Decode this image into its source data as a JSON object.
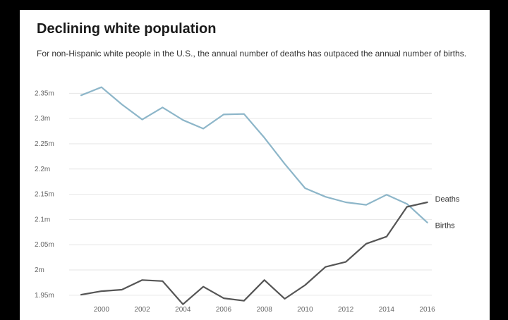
{
  "header": {
    "title": "Declining white population",
    "subtitle": "For non-Hispanic white people in the U.S., the annual number of deaths has outpaced the annual number of births."
  },
  "chart_data": {
    "type": "line",
    "title": "Declining white population",
    "subtitle": "For non-Hispanic white people in the U.S., the annual number of deaths has outpaced the annual number of births.",
    "xlabel": "",
    "ylabel": "",
    "x": [
      1999,
      2000,
      2001,
      2002,
      2003,
      2004,
      2005,
      2006,
      2007,
      2008,
      2009,
      2010,
      2011,
      2012,
      2013,
      2014,
      2015,
      2016
    ],
    "x_ticks": [
      "2000",
      "2002",
      "2004",
      "2006",
      "2008",
      "2010",
      "2012",
      "2014",
      "2016"
    ],
    "x_tick_values": [
      2000,
      2002,
      2004,
      2006,
      2008,
      2010,
      2012,
      2014,
      2016
    ],
    "ylim": [
      1.94,
      2.37
    ],
    "y_ticks": [
      "2.35m",
      "2.3m",
      "2.25m",
      "2.2m",
      "2.15m",
      "2.1m",
      "2.05m",
      "2m",
      "1.95m"
    ],
    "y_tick_values": [
      2.35,
      2.3,
      2.25,
      2.2,
      2.15,
      2.1,
      2.05,
      2.0,
      1.95
    ],
    "grid": true,
    "legend": "direct labels at line ends",
    "series": [
      {
        "name": "Births",
        "color": "#8db6c9",
        "values": [
          2.346,
          2.362,
          2.328,
          2.298,
          2.322,
          2.297,
          2.28,
          2.308,
          2.309,
          2.262,
          2.21,
          2.162,
          2.145,
          2.134,
          2.129,
          2.149,
          2.131,
          2.094
        ]
      },
      {
        "name": "Deaths",
        "color": "#555555",
        "values": [
          1.951,
          1.958,
          1.961,
          1.98,
          1.978,
          1.932,
          1.967,
          1.944,
          1.939,
          1.98,
          1.943,
          1.97,
          2.006,
          2.016,
          2.052,
          2.066,
          2.125,
          2.134
        ]
      }
    ]
  }
}
